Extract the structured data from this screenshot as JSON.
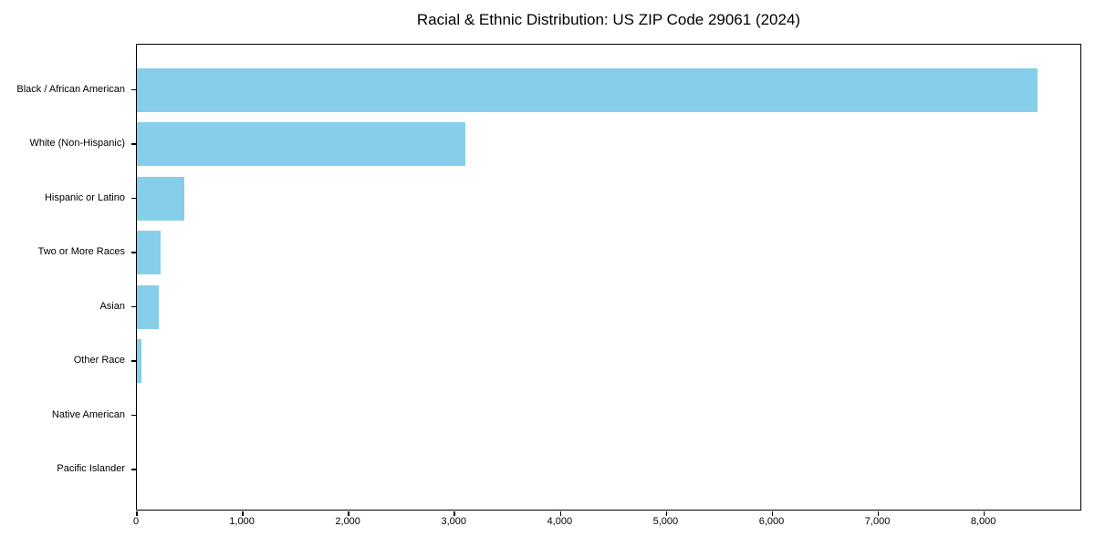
{
  "chart_data": {
    "type": "bar",
    "orientation": "horizontal",
    "title": "Racial & Ethnic Distribution: US ZIP Code 29061 (2024)",
    "categories": [
      "Black / African American",
      "White (Non-Hispanic)",
      "Hispanic or Latino",
      "Two or More Races",
      "Asian",
      "Other Race",
      "Native American",
      "Pacific Islander"
    ],
    "values": [
      8500,
      3100,
      450,
      220,
      210,
      40,
      0,
      0
    ],
    "xlabel": "",
    "ylabel": "",
    "xlim": [
      0,
      8925
    ],
    "xticks": [
      0,
      1000,
      2000,
      3000,
      4000,
      5000,
      6000,
      7000,
      8000
    ],
    "xtick_labels": [
      "0",
      "1,000",
      "2,000",
      "3,000",
      "4,000",
      "5,000",
      "6,000",
      "7,000",
      "8,000"
    ],
    "bar_color": "#87CEEB",
    "axis_color": "#000000",
    "background_color": "#ffffff",
    "grid": false,
    "legend": null
  }
}
